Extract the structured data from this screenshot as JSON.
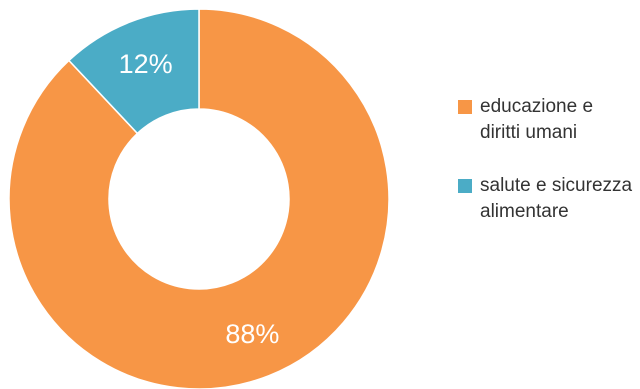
{
  "chart_data": {
    "type": "pie",
    "variant": "donut",
    "title": "",
    "legend_position": "right",
    "slices": [
      {
        "label": "educazione e diritti umani",
        "value": 88,
        "display": "88%",
        "color": "#F79646"
      },
      {
        "label": "salute e sicurezza alimentare",
        "value": 12,
        "display": "12%",
        "color": "#4BACC6"
      }
    ]
  }
}
